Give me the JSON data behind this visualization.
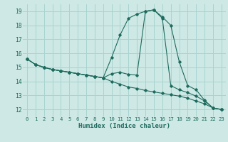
{
  "background_color": "#cde8e5",
  "grid_color": "#a8d4d0",
  "line_color": "#1e6b5e",
  "xlabel": "Humidex (Indice chaleur)",
  "xlim": [
    -0.5,
    23.5
  ],
  "ylim": [
    11.5,
    19.5
  ],
  "xticks": [
    0,
    1,
    2,
    3,
    4,
    5,
    6,
    7,
    8,
    9,
    10,
    11,
    12,
    13,
    14,
    15,
    16,
    17,
    18,
    19,
    20,
    21,
    22,
    23
  ],
  "yticks": [
    12,
    13,
    14,
    15,
    16,
    17,
    18,
    19
  ],
  "line1_x": [
    0,
    1,
    2,
    3,
    4,
    5,
    6,
    7,
    8,
    9,
    10,
    11,
    12,
    13,
    14,
    15,
    16,
    17,
    18,
    19,
    20,
    21,
    22,
    23
  ],
  "line1_y": [
    15.6,
    15.2,
    15.0,
    14.85,
    14.75,
    14.65,
    14.55,
    14.45,
    14.35,
    14.25,
    14.55,
    14.65,
    14.5,
    14.45,
    19.0,
    19.1,
    18.5,
    13.7,
    13.4,
    13.2,
    12.95,
    12.6,
    12.1,
    12.0
  ],
  "line2_x": [
    0,
    1,
    2,
    3,
    4,
    5,
    6,
    7,
    8,
    9,
    10,
    11,
    12,
    13,
    14,
    15,
    16,
    17,
    18,
    19,
    20,
    21,
    22,
    23
  ],
  "line2_y": [
    15.6,
    15.2,
    15.0,
    14.85,
    14.75,
    14.65,
    14.55,
    14.45,
    14.35,
    14.25,
    14.0,
    13.8,
    13.6,
    13.5,
    13.35,
    13.25,
    13.15,
    13.05,
    12.95,
    12.8,
    12.6,
    12.4,
    12.1,
    12.0
  ],
  "line3_x": [
    0,
    1,
    2,
    3,
    4,
    5,
    6,
    7,
    8,
    9,
    10,
    11,
    12,
    13,
    14,
    15,
    16,
    17,
    18,
    19,
    20,
    21,
    22,
    23
  ],
  "line3_y": [
    15.6,
    15.2,
    15.0,
    14.85,
    14.75,
    14.65,
    14.55,
    14.45,
    14.35,
    14.25,
    15.7,
    17.3,
    18.5,
    18.8,
    19.0,
    19.1,
    18.6,
    18.0,
    15.4,
    13.7,
    13.4,
    12.65,
    12.1,
    12.0
  ]
}
